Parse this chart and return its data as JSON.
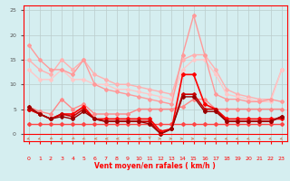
{
  "x": [
    0,
    1,
    2,
    3,
    4,
    5,
    6,
    7,
    8,
    9,
    10,
    11,
    12,
    13,
    14,
    15,
    16,
    17,
    18,
    19,
    20,
    21,
    22,
    23
  ],
  "lines": [
    {
      "y": [
        18,
        15,
        13,
        13,
        12,
        15,
        10,
        9,
        8.5,
        8,
        7.5,
        7,
        6.5,
        6,
        16,
        24,
        16,
        8,
        7,
        7,
        6.5,
        6.5,
        7,
        6.5
      ],
      "color": "#FF9999",
      "lw": 1.0,
      "marker": "D",
      "ms": 2,
      "zorder": 3
    },
    {
      "y": [
        15,
        13,
        12,
        15,
        13,
        15,
        12,
        11,
        10,
        10,
        9.5,
        9,
        8.5,
        8,
        15,
        16,
        16,
        13,
        9,
        8,
        7.5,
        7,
        7,
        13
      ],
      "color": "#FFB0B0",
      "lw": 1.0,
      "marker": "D",
      "ms": 2,
      "zorder": 2
    },
    {
      "y": [
        13,
        11,
        11,
        13,
        11,
        11,
        10,
        10,
        9,
        9,
        8.5,
        8,
        7.5,
        7,
        13,
        15,
        15,
        12,
        8,
        7.5,
        7,
        6.5,
        6.5,
        13
      ],
      "color": "#FFC8C8",
      "lw": 1.0,
      "marker": "D",
      "ms": 2,
      "zorder": 2
    },
    {
      "y": [
        5.5,
        4.5,
        4,
        7,
        5,
        6,
        4,
        4,
        4,
        4,
        5,
        5,
        5,
        5,
        5.5,
        7,
        7,
        5,
        5,
        5,
        5,
        5,
        5,
        5
      ],
      "color": "#FF8888",
      "lw": 1.0,
      "marker": "D",
      "ms": 2,
      "zorder": 4
    },
    {
      "y": [
        5,
        4,
        3,
        4,
        4,
        5.5,
        3,
        3,
        3,
        3,
        3,
        3,
        0.5,
        1,
        12,
        12,
        6,
        5,
        3,
        3,
        3,
        3,
        3,
        3
      ],
      "color": "#FF0000",
      "lw": 1.2,
      "marker": "D",
      "ms": 2,
      "zorder": 5
    },
    {
      "y": [
        5,
        4,
        3,
        4,
        3.5,
        5,
        3,
        2.5,
        2.5,
        2.5,
        2.5,
        2.5,
        0,
        1,
        8,
        8,
        5,
        5,
        2.5,
        2.5,
        2.5,
        2.5,
        2.5,
        3.5
      ],
      "color": "#CC0000",
      "lw": 1.2,
      "marker": "D",
      "ms": 2,
      "zorder": 5
    },
    {
      "y": [
        5.5,
        4,
        3,
        3.5,
        3,
        4.5,
        3,
        2.5,
        2.5,
        2.5,
        2.5,
        2,
        0,
        1,
        7.5,
        7.5,
        4.5,
        4.5,
        2.5,
        2.5,
        2.5,
        2.5,
        2.5,
        3.5
      ],
      "color": "#990000",
      "lw": 1.0,
      "marker": "D",
      "ms": 2,
      "zorder": 5
    },
    {
      "y": [
        2,
        2,
        2,
        2,
        2,
        2,
        2,
        2,
        2,
        2,
        2,
        2,
        2,
        2,
        2,
        2,
        2,
        2,
        2,
        2,
        2,
        2,
        2,
        2
      ],
      "color": "#FF4444",
      "lw": 1.0,
      "marker": "D",
      "ms": 2,
      "zorder": 4
    }
  ],
  "xlabel": "Vent moyen/en rafales ( km/h )",
  "ylim": [
    -1.5,
    26
  ],
  "xlim": [
    -0.5,
    23.5
  ],
  "yticks": [
    0,
    5,
    10,
    15,
    20,
    25
  ],
  "xticks": [
    0,
    1,
    2,
    3,
    4,
    5,
    6,
    7,
    8,
    9,
    10,
    11,
    12,
    13,
    14,
    15,
    16,
    17,
    18,
    19,
    20,
    21,
    22,
    23
  ],
  "bg_color": "#D5EEF0",
  "grid_color": "#BBCCCC",
  "xlabel_color": "#FF0000",
  "arrow_color": "#CC8866"
}
